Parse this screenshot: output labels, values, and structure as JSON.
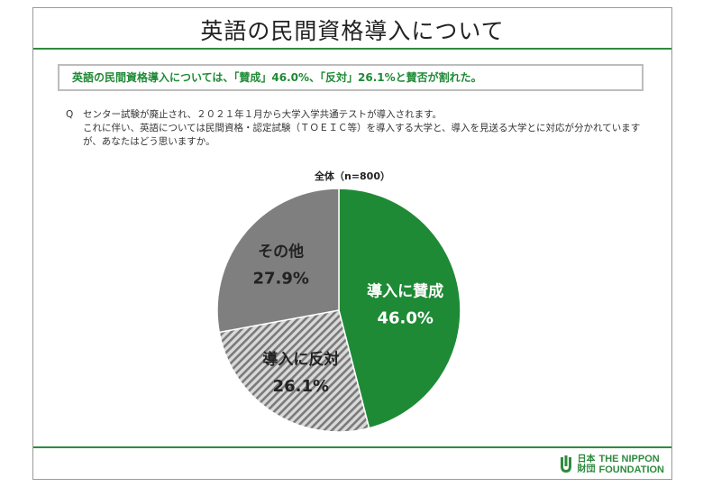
{
  "header": {
    "title": "英語の民間資格導入について"
  },
  "summary": {
    "text": "英語の民間資格導入については、「賛成」46.0%、「反対」26.1%と賛否が割れた。"
  },
  "question": {
    "mark": "Q",
    "text": "センター試験が廃止され、２０２１年１月から大学入学共通テストが導入されます。\nこれに伴い、英語については民間資格・認定試験（ＴＯＥＩＣ等）を導入する大学と、導入を見送る大学とに対応が分かれていますが、あなたはどう思いますか。"
  },
  "chart_data": {
    "type": "pie",
    "title": "全体（n=800）",
    "slices": [
      {
        "label": "導入に賛成",
        "value": 46.0,
        "display": "46.0%",
        "color": "#1f8a36",
        "pattern": "solid"
      },
      {
        "label": "導入に反対",
        "value": 26.1,
        "display": "26.1%",
        "color": "#a6a6a6",
        "pattern": "diagonal-hatch"
      },
      {
        "label": "その他",
        "value": 27.9,
        "display": "27.9%",
        "color": "#7f7f7f",
        "pattern": "solid"
      }
    ],
    "start": "12 o'clock",
    "direction": "clockwise"
  },
  "footer": {
    "logo_ja": "日本財団",
    "logo_ja_line1": "日本",
    "logo_ja_line2": "財団",
    "logo_en_line1": "THE NIPPON",
    "logo_en_line2": "FOUNDATION",
    "brand_color": "#2e8b3e"
  }
}
